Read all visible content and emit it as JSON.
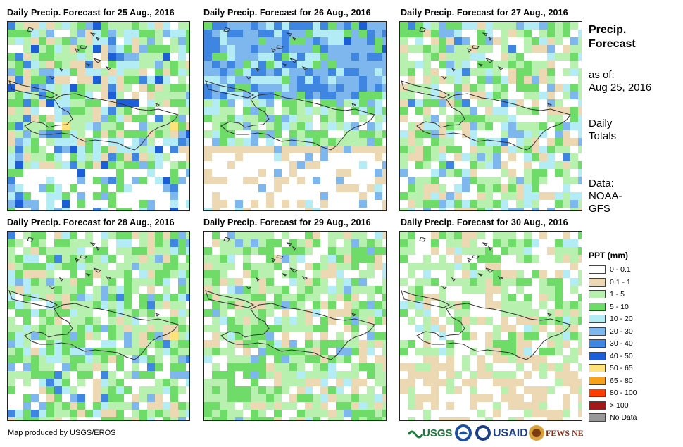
{
  "panels": [
    {
      "title": "Daily Precip. Forecast for 25 Aug., 2016",
      "seed": 11,
      "profile": "wet"
    },
    {
      "title": "Daily Precip. Forecast for 26 Aug., 2016",
      "seed": 23,
      "profile": "northwet"
    },
    {
      "title": "Daily Precip. Forecast for 27 Aug., 2016",
      "seed": 37,
      "profile": "mixed"
    },
    {
      "title": "Daily Precip. Forecast for 28 Aug., 2016",
      "seed": 41,
      "profile": "mixed2"
    },
    {
      "title": "Daily Precip. Forecast for 29 Aug., 2016",
      "seed": 53,
      "profile": "greener"
    },
    {
      "title": "Daily Precip. Forecast for 30 Aug., 2016",
      "seed": 67,
      "profile": "dry"
    }
  ],
  "side": {
    "heading_line1": "Precip.",
    "heading_line2": "Forecast",
    "asof_label": "as of:",
    "asof_date": "Aug 25, 2016",
    "totals_line1": "Daily",
    "totals_line2": "Totals",
    "data_label": "Data:",
    "data_line1": "NOAA-",
    "data_line2": "GFS"
  },
  "legend": {
    "title": "PPT (mm)",
    "items": [
      {
        "label": "0 - 0.1",
        "color": "#ffffff"
      },
      {
        "label": "0.1 - 1",
        "color": "#ecd9b4"
      },
      {
        "label": "1 - 5",
        "color": "#b8f0b0"
      },
      {
        "label": "5 - 10",
        "color": "#6fdc6a"
      },
      {
        "label": "10 - 20",
        "color": "#b4ecf5"
      },
      {
        "label": "20 - 30",
        "color": "#7eb6ee"
      },
      {
        "label": "30 - 40",
        "color": "#3f86e2"
      },
      {
        "label": "40 - 50",
        "color": "#1c5ed8"
      },
      {
        "label": "50 - 65",
        "color": "#ffe27a"
      },
      {
        "label": "65 - 80",
        "color": "#f7a11b"
      },
      {
        "label": "80 - 100",
        "color": "#ff3c00"
      },
      {
        "label": "> 100",
        "color": "#a31818"
      },
      {
        "label": "No Data",
        "color": "#999999"
      }
    ]
  },
  "credit": "Map produced by USGS/EROS",
  "logos": [
    {
      "name": "USGS",
      "text": "USGS"
    },
    {
      "name": "NOAA",
      "text": "NOAA"
    },
    {
      "name": "USAID",
      "text": "USAID"
    },
    {
      "name": "FEWS NET",
      "text": "FEWS NET"
    }
  ]
}
